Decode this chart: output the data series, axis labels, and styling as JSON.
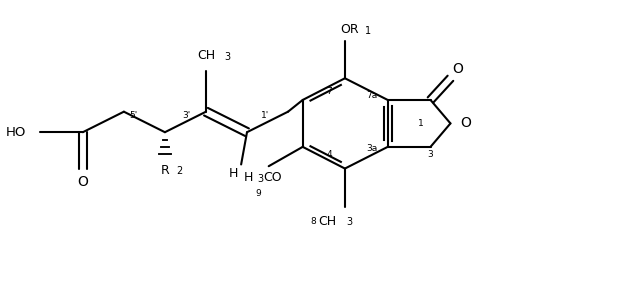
{
  "bg_color": "#ffffff",
  "line_color": "#000000",
  "lw": 1.5,
  "fs": 8.5,
  "fig_w": 6.2,
  "fig_h": 2.82,
  "dpi": 100,
  "xlim": [
    0,
    10.5
  ],
  "ylim": [
    0,
    4.7
  ]
}
